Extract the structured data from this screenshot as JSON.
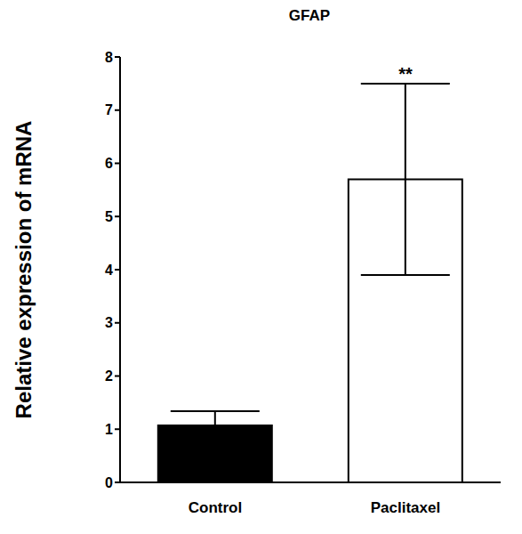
{
  "chart_data": {
    "type": "bar",
    "title": "GFAP",
    "categories": [
      "Control",
      "Paclitaxel"
    ],
    "values": [
      1.07,
      5.7
    ],
    "errors": [
      0.27,
      1.8
    ],
    "colors": [
      "#000000",
      "#ffffff"
    ],
    "ylabel": "Relative expression of mRNA",
    "ylim": [
      0,
      8
    ],
    "yticks": [
      0,
      1,
      2,
      3,
      4,
      5,
      6,
      7,
      8
    ],
    "grid": false,
    "annotations": [
      {
        "text": "**",
        "category": "Paclitaxel"
      }
    ]
  }
}
